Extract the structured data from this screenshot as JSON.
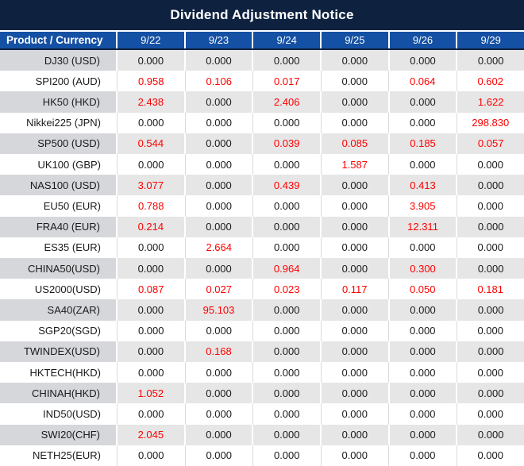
{
  "title": "Dividend Adjustment Notice",
  "columns": {
    "label": "Product / Currency",
    "dates": [
      "9/22",
      "9/23",
      "9/24",
      "9/25",
      "9/26",
      "9/29"
    ]
  },
  "colors": {
    "title_bar_bg": "#0E2240",
    "header_bg": "#1450A3",
    "header_text": "#FFFFFF",
    "header_divider": "#FFFFFF",
    "header_bottom_border": "#0E2240",
    "row_gray_value_bg": "#E6E6E6",
    "row_gray_label_bg": "#D5D7DB",
    "row_white_bg": "#FFFFFF",
    "white_row_divider": "#DBDBDB",
    "value_zero_color": "#1A1A1A",
    "value_nonzero_color": "#FF0000"
  },
  "chart_data": {
    "type": "table",
    "title": "Dividend Adjustment Notice",
    "columns": [
      "Product / Currency",
      "9/22",
      "9/23",
      "9/24",
      "9/25",
      "9/26",
      "9/29"
    ],
    "rows": [
      {
        "label": "DJ30 (USD)",
        "values": [
          "0.000",
          "0.000",
          "0.000",
          "0.000",
          "0.000",
          "0.000"
        ]
      },
      {
        "label": "SPI200 (AUD)",
        "values": [
          "0.958",
          "0.106",
          "0.017",
          "0.000",
          "0.064",
          "0.602"
        ]
      },
      {
        "label": "HK50 (HKD)",
        "values": [
          "2.438",
          "0.000",
          "2.406",
          "0.000",
          "0.000",
          "1.622"
        ]
      },
      {
        "label": "Nikkei225 (JPN)",
        "values": [
          "0.000",
          "0.000",
          "0.000",
          "0.000",
          "0.000",
          "298.830"
        ]
      },
      {
        "label": "SP500 (USD)",
        "values": [
          "0.544",
          "0.000",
          "0.039",
          "0.085",
          "0.185",
          "0.057"
        ]
      },
      {
        "label": "UK100 (GBP)",
        "values": [
          "0.000",
          "0.000",
          "0.000",
          "1.587",
          "0.000",
          "0.000"
        ]
      },
      {
        "label": "NAS100 (USD)",
        "values": [
          "3.077",
          "0.000",
          "0.439",
          "0.000",
          "0.413",
          "0.000"
        ]
      },
      {
        "label": "EU50 (EUR)",
        "values": [
          "0.788",
          "0.000",
          "0.000",
          "0.000",
          "3.905",
          "0.000"
        ]
      },
      {
        "label": "FRA40 (EUR)",
        "values": [
          "0.214",
          "0.000",
          "0.000",
          "0.000",
          "12.311",
          "0.000"
        ]
      },
      {
        "label": "ES35 (EUR)",
        "values": [
          "0.000",
          "2.664",
          "0.000",
          "0.000",
          "0.000",
          "0.000"
        ]
      },
      {
        "label": "CHINA50(USD)",
        "values": [
          "0.000",
          "0.000",
          "0.964",
          "0.000",
          "0.300",
          "0.000"
        ]
      },
      {
        "label": "US2000(USD)",
        "values": [
          "0.087",
          "0.027",
          "0.023",
          "0.117",
          "0.050",
          "0.181"
        ]
      },
      {
        "label": "SA40(ZAR)",
        "values": [
          "0.000",
          "95.103",
          "0.000",
          "0.000",
          "0.000",
          "0.000"
        ]
      },
      {
        "label": "SGP20(SGD)",
        "values": [
          "0.000",
          "0.000",
          "0.000",
          "0.000",
          "0.000",
          "0.000"
        ]
      },
      {
        "label": "TWINDEX(USD)",
        "values": [
          "0.000",
          "0.168",
          "0.000",
          "0.000",
          "0.000",
          "0.000"
        ]
      },
      {
        "label": "HKTECH(HKD)",
        "values": [
          "0.000",
          "0.000",
          "0.000",
          "0.000",
          "0.000",
          "0.000"
        ]
      },
      {
        "label": "CHINAH(HKD)",
        "values": [
          "1.052",
          "0.000",
          "0.000",
          "0.000",
          "0.000",
          "0.000"
        ]
      },
      {
        "label": "IND50(USD)",
        "values": [
          "0.000",
          "0.000",
          "0.000",
          "0.000",
          "0.000",
          "0.000"
        ]
      },
      {
        "label": "SWI20(CHF)",
        "values": [
          "2.045",
          "0.000",
          "0.000",
          "0.000",
          "0.000",
          "0.000"
        ]
      },
      {
        "label": "NETH25(EUR)",
        "values": [
          "0.000",
          "0.000",
          "0.000",
          "0.000",
          "0.000",
          "0.000"
        ]
      }
    ],
    "value_color_rule": "zero values dark gray-black, non-zero values red",
    "layout": {
      "zebra_striping": true,
      "first_data_row_shade": "gray",
      "label_column_align": "right",
      "value_columns_align": "center"
    }
  }
}
